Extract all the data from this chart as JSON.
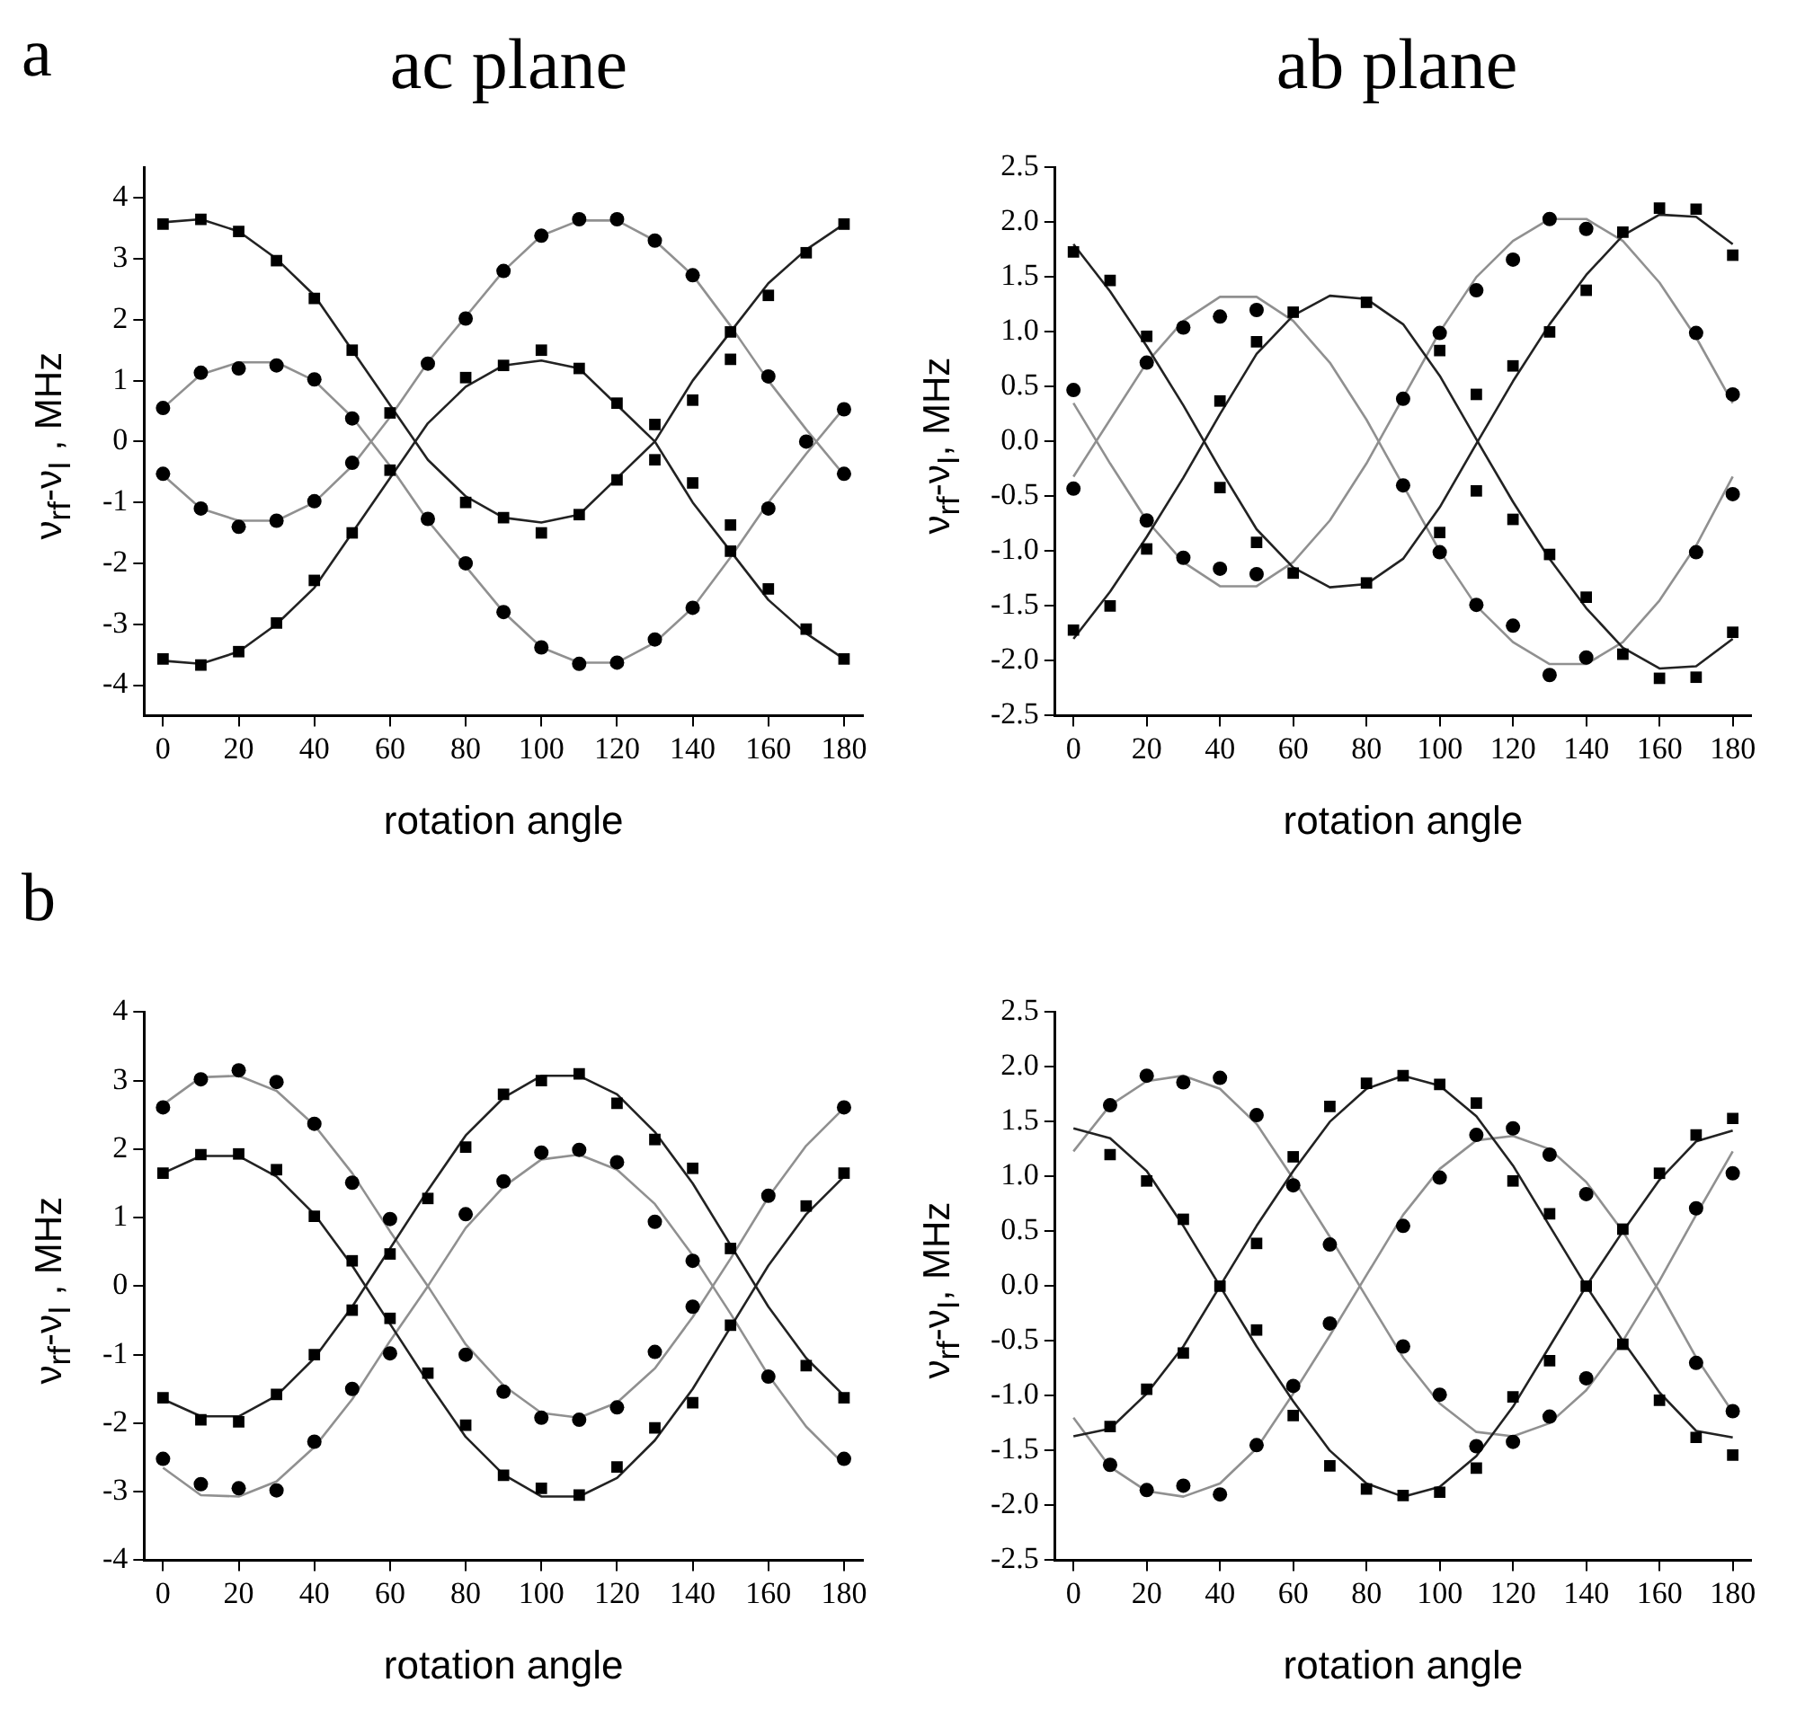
{
  "chart_data": [
    {
      "type": "scatter",
      "title": "ac plane",
      "annotations": [
        "a"
      ],
      "xlabel": "rotation angle",
      "ylabel": "ν$_{rf}$-ν$_{I}$ , MHz",
      "x": [
        0,
        10,
        20,
        30,
        40,
        50,
        60,
        70,
        80,
        90,
        100,
        110,
        120,
        130,
        140,
        150,
        160,
        170,
        180
      ],
      "xlim": [
        -5,
        185
      ],
      "xticks": [
        0,
        20,
        40,
        60,
        80,
        100,
        120,
        140,
        160,
        180
      ],
      "ylim": [
        -4.5,
        4.5
      ],
      "yticks": [
        -4,
        -3,
        -2,
        -1,
        0,
        1,
        2,
        3,
        4
      ],
      "series": [
        {
          "type": "scatter",
          "marker": "square",
          "color": "#000000",
          "values": [
            3.57,
            3.65,
            3.45,
            2.97,
            2.35,
            1.5,
            0.47,
            null,
            -1.0,
            -1.25,
            -1.5,
            -1.2,
            -0.63,
            0.28,
            0.68,
            1.8,
            2.4,
            3.1,
            3.57
          ]
        },
        {
          "type": "scatter",
          "marker": "square",
          "color": "#000000",
          "values": [
            -3.57,
            -3.67,
            -3.45,
            -2.98,
            -2.28,
            -1.5,
            -0.47,
            null,
            1.05,
            1.25,
            1.5,
            1.2,
            0.63,
            -0.3,
            -0.68,
            -1.8,
            -2.42,
            -3.08,
            -3.57
          ]
        },
        {
          "type": "scatter",
          "marker": "square",
          "color": "#000000",
          "x": [
            150,
            150
          ],
          "values": [
            1.35,
            -1.37
          ]
        },
        {
          "type": "scatter",
          "marker": "circle",
          "color": "#000000",
          "values": [
            0.55,
            1.13,
            1.2,
            1.25,
            1.02,
            0.38,
            null,
            -1.27,
            -2.0,
            -2.8,
            -3.38,
            -3.65,
            -3.63,
            -3.25,
            -2.73,
            null,
            -1.1,
            0.0,
            0.53
          ]
        },
        {
          "type": "scatter",
          "marker": "circle",
          "color": "#000000",
          "values": [
            -0.53,
            -1.1,
            -1.4,
            -1.3,
            -0.98,
            -0.35,
            null,
            1.28,
            2.02,
            2.8,
            3.38,
            3.65,
            3.65,
            3.3,
            2.73,
            null,
            1.07,
            null,
            -0.53
          ]
        },
        {
          "type": "line",
          "marker": "none",
          "color": "#222222",
          "values": [
            3.6,
            3.65,
            3.45,
            3.0,
            2.4,
            1.5,
            0.6,
            -0.3,
            -0.9,
            -1.25,
            -1.33,
            -1.2,
            -0.6,
            0.0,
            1.0,
            1.8,
            2.6,
            3.15,
            3.57
          ]
        },
        {
          "type": "line",
          "marker": "none",
          "color": "#222222",
          "values": [
            -3.6,
            -3.65,
            -3.45,
            -3.0,
            -2.4,
            -1.5,
            -0.6,
            0.3,
            0.9,
            1.25,
            1.33,
            1.2,
            0.6,
            0.0,
            -1.0,
            -1.8,
            -2.6,
            -3.15,
            -3.57
          ]
        },
        {
          "type": "line",
          "marker": "none",
          "color": "#909090",
          "values": [
            0.55,
            1.1,
            1.3,
            1.3,
            1.0,
            0.4,
            -0.4,
            -1.3,
            -2.05,
            -2.8,
            -3.38,
            -3.63,
            -3.63,
            -3.3,
            -2.73,
            -1.9,
            -1.0,
            -0.2,
            0.55
          ]
        },
        {
          "type": "line",
          "marker": "none",
          "color": "#909090",
          "values": [
            -0.55,
            -1.1,
            -1.3,
            -1.3,
            -1.0,
            -0.4,
            0.4,
            1.3,
            2.05,
            2.8,
            3.38,
            3.63,
            3.63,
            3.3,
            2.73,
            1.9,
            1.0,
            0.2,
            -0.55
          ]
        }
      ]
    },
    {
      "type": "scatter",
      "title": "ab plane",
      "xlabel": "rotation angle",
      "ylabel": "ν$_{rf}$-ν$_{I}$, MHz",
      "x": [
        0,
        10,
        20,
        30,
        40,
        50,
        60,
        70,
        80,
        90,
        100,
        110,
        120,
        130,
        140,
        150,
        160,
        170,
        180
      ],
      "xlim": [
        -5,
        185
      ],
      "xticks": [
        0,
        20,
        40,
        60,
        80,
        100,
        120,
        140,
        160,
        180
      ],
      "ylim": [
        -2.5,
        2.5
      ],
      "yticks": [
        -2.5,
        {
          "value": -2,
          "label": "-2.0"
        },
        -1.5,
        {
          "value": -1,
          "label": "-1.0"
        },
        -0.5,
        {
          "value": 0,
          "label": "0.0"
        },
        0.5,
        {
          "value": 1,
          "label": "1.0"
        },
        1.5,
        {
          "value": 2,
          "label": "2.0"
        },
        2.5
      ],
      "series": [
        {
          "type": "scatter",
          "marker": "square",
          "color": "#000000",
          "values": [
            1.73,
            1.47,
            0.96,
            null,
            -0.42,
            -0.92,
            -1.2,
            null,
            -1.29,
            null,
            -0.83,
            -0.45,
            0.69,
            1.0,
            1.38,
            1.91,
            2.13,
            2.12,
            1.7
          ]
        },
        {
          "type": "scatter",
          "marker": "square",
          "color": "#000000",
          "values": [
            -1.72,
            -1.5,
            -0.98,
            null,
            0.37,
            0.91,
            1.18,
            null,
            1.27,
            null,
            0.83,
            0.43,
            -0.71,
            -1.03,
            -1.42,
            -1.94,
            -2.16,
            -2.15,
            -1.74
          ]
        },
        {
          "type": "scatter",
          "marker": "circle",
          "color": "#000000",
          "values": [
            -0.43,
            null,
            0.72,
            1.04,
            1.14,
            1.2,
            null,
            null,
            null,
            -0.4,
            -1.01,
            -1.49,
            -1.68,
            -2.13,
            -1.97,
            null,
            null,
            -1.01,
            -0.48
          ]
        },
        {
          "type": "scatter",
          "marker": "circle",
          "color": "#000000",
          "values": [
            0.47,
            null,
            -0.72,
            -1.06,
            -1.16,
            -1.21,
            null,
            null,
            null,
            0.39,
            0.99,
            1.38,
            1.66,
            2.03,
            1.94,
            null,
            null,
            0.99,
            0.43
          ]
        },
        {
          "type": "line",
          "marker": "none",
          "color": "#222222",
          "values": [
            1.8,
            1.37,
            0.87,
            0.33,
            -0.25,
            -0.8,
            -1.15,
            -1.33,
            -1.3,
            -1.07,
            -0.6,
            -0.02,
            0.55,
            1.07,
            1.52,
            1.88,
            2.07,
            2.05,
            1.8
          ]
        },
        {
          "type": "line",
          "marker": "none",
          "color": "#222222",
          "values": [
            -1.8,
            -1.37,
            -0.87,
            -0.33,
            0.25,
            0.8,
            1.15,
            1.33,
            1.3,
            1.07,
            0.6,
            0.02,
            -0.55,
            -1.07,
            -1.52,
            -1.88,
            -2.07,
            -2.05,
            -1.8
          ]
        },
        {
          "type": "line",
          "marker": "none",
          "color": "#909090",
          "values": [
            -0.32,
            0.2,
            0.72,
            1.1,
            1.32,
            1.32,
            1.1,
            0.72,
            0.2,
            -0.4,
            -1.0,
            -1.5,
            -1.83,
            -2.03,
            -2.03,
            -1.83,
            -1.45,
            -0.95,
            -0.32
          ]
        },
        {
          "type": "line",
          "marker": "none",
          "color": "#909090",
          "values": [
            0.35,
            -0.2,
            -0.72,
            -1.1,
            -1.32,
            -1.32,
            -1.1,
            -0.72,
            -0.2,
            0.4,
            1.0,
            1.5,
            1.83,
            2.03,
            2.03,
            1.83,
            1.45,
            0.95,
            0.35
          ]
        }
      ]
    },
    {
      "type": "scatter",
      "annotations": [
        "b"
      ],
      "xlabel": "rotation angle",
      "ylabel": "ν$_{rf}$-ν$_{I}$ , MHz",
      "x": [
        0,
        10,
        20,
        30,
        40,
        50,
        60,
        70,
        80,
        90,
        100,
        110,
        120,
        130,
        140,
        150,
        160,
        170,
        180
      ],
      "xlim": [
        -5,
        185
      ],
      "xticks": [
        0,
        20,
        40,
        60,
        80,
        100,
        120,
        140,
        160,
        180
      ],
      "ylim": [
        -4,
        4
      ],
      "yticks": [
        -4,
        -3,
        -2,
        -1,
        0,
        1,
        2,
        3,
        4
      ],
      "series": [
        {
          "type": "scatter",
          "marker": "square",
          "color": "#000000",
          "values": [
            1.65,
            1.92,
            1.93,
            1.7,
            1.02,
            0.37,
            -0.47,
            -1.27,
            -2.03,
            -2.76,
            -2.95,
            -3.05,
            -2.64,
            -2.07,
            -1.7,
            -0.57,
            null,
            1.17,
            1.65
          ]
        },
        {
          "type": "scatter",
          "marker": "square",
          "color": "#000000",
          "values": [
            -1.63,
            -1.95,
            -1.98,
            -1.58,
            -1.0,
            -0.35,
            0.47,
            1.28,
            2.03,
            2.8,
            3.0,
            3.1,
            2.67,
            2.14,
            1.72,
            0.55,
            null,
            -1.16,
            -1.63
          ]
        },
        {
          "type": "scatter",
          "marker": "circle",
          "color": "#000000",
          "values": [
            2.61,
            3.02,
            3.15,
            2.98,
            2.37,
            1.51,
            0.98,
            null,
            -1.0,
            -1.54,
            -1.92,
            -1.95,
            -1.77,
            -0.96,
            -0.3,
            null,
            1.32,
            null,
            2.61
          ]
        },
        {
          "type": "scatter",
          "marker": "circle",
          "color": "#000000",
          "values": [
            -2.52,
            -2.89,
            -2.95,
            -2.98,
            -2.27,
            -1.5,
            -0.98,
            null,
            1.05,
            1.53,
            1.95,
            1.99,
            1.81,
            0.94,
            0.37,
            null,
            -1.32,
            null,
            -2.52
          ]
        },
        {
          "type": "line",
          "marker": "none",
          "color": "#222222",
          "values": [
            1.65,
            1.9,
            1.9,
            1.6,
            1.05,
            0.3,
            -0.55,
            -1.4,
            -2.2,
            -2.75,
            -3.07,
            -3.07,
            -2.8,
            -2.25,
            -1.5,
            -0.6,
            0.3,
            1.05,
            1.6
          ]
        },
        {
          "type": "line",
          "marker": "none",
          "color": "#222222",
          "values": [
            -1.65,
            -1.9,
            -1.9,
            -1.6,
            -1.05,
            -0.3,
            0.55,
            1.4,
            2.2,
            2.75,
            3.07,
            3.07,
            2.8,
            2.25,
            1.5,
            0.6,
            -0.3,
            -1.05,
            -1.6
          ]
        },
        {
          "type": "line",
          "marker": "none",
          "color": "#909090",
          "values": [
            2.65,
            3.05,
            3.07,
            2.85,
            2.35,
            1.65,
            0.8,
            0.0,
            -0.85,
            -1.45,
            -1.85,
            -1.92,
            -1.7,
            -1.2,
            -0.45,
            0.4,
            1.3,
            2.05,
            2.6
          ]
        },
        {
          "type": "line",
          "marker": "none",
          "color": "#909090",
          "values": [
            -2.65,
            -3.05,
            -3.07,
            -2.85,
            -2.35,
            -1.65,
            -0.8,
            0.0,
            0.85,
            1.45,
            1.85,
            1.92,
            1.7,
            1.2,
            0.45,
            -0.4,
            -1.3,
            -2.05,
            -2.6
          ]
        }
      ]
    },
    {
      "type": "scatter",
      "xlabel": "rotation angle",
      "ylabel": "ν$_{rf}$-ν$_{I}$, MHz",
      "x": [
        0,
        10,
        20,
        30,
        40,
        50,
        60,
        70,
        80,
        90,
        100,
        110,
        120,
        130,
        140,
        150,
        160,
        170,
        180
      ],
      "xlim": [
        -5,
        185
      ],
      "xticks": [
        0,
        20,
        40,
        60,
        80,
        100,
        120,
        140,
        160,
        180
      ],
      "ylim": [
        -2.5,
        2.5
      ],
      "yticks": [
        -2.5,
        {
          "value": -2,
          "label": "-2.0"
        },
        -1.5,
        {
          "value": -1,
          "label": "-1.0"
        },
        -0.5,
        {
          "value": 0,
          "label": "0.0"
        },
        0.5,
        {
          "value": 1,
          "label": "1.0"
        },
        1.5,
        {
          "value": 2,
          "label": "2.0"
        },
        2.5
      ],
      "series": [
        {
          "type": "scatter",
          "marker": "square",
          "color": "#000000",
          "values": [
            null,
            1.2,
            0.96,
            0.61,
            0.0,
            -0.4,
            -1.18,
            -1.64,
            -1.85,
            -1.91,
            -1.88,
            -1.66,
            -1.01,
            -0.68,
            0.0,
            0.52,
            1.03,
            1.38,
            1.53
          ]
        },
        {
          "type": "scatter",
          "marker": "square",
          "color": "#000000",
          "values": [
            null,
            -1.28,
            -0.94,
            -0.61,
            null,
            0.39,
            1.18,
            1.64,
            1.85,
            1.92,
            1.84,
            1.67,
            0.96,
            0.66,
            null,
            -0.53,
            -1.04,
            -1.38,
            -1.54
          ]
        },
        {
          "type": "scatter",
          "marker": "circle",
          "color": "#000000",
          "values": [
            null,
            1.65,
            1.92,
            1.86,
            1.9,
            1.56,
            0.92,
            0.38,
            null,
            -0.55,
            -0.99,
            -1.46,
            -1.42,
            -1.19,
            -0.84,
            null,
            null,
            0.71,
            1.03
          ]
        },
        {
          "type": "scatter",
          "marker": "circle",
          "color": "#000000",
          "values": [
            null,
            -1.63,
            -1.86,
            -1.82,
            -1.9,
            -1.45,
            -0.91,
            -0.34,
            null,
            0.55,
            0.99,
            1.38,
            1.44,
            1.2,
            0.84,
            null,
            null,
            -0.7,
            -1.14
          ]
        },
        {
          "type": "line",
          "marker": "none",
          "color": "#222222",
          "values": [
            1.44,
            1.35,
            1.05,
            0.55,
            0.0,
            -0.55,
            -1.05,
            -1.5,
            -1.8,
            -1.92,
            -1.83,
            -1.55,
            -1.1,
            -0.55,
            0.0,
            0.5,
            0.97,
            1.32,
            1.42
          ]
        },
        {
          "type": "line",
          "marker": "none",
          "color": "#222222",
          "values": [
            -1.37,
            -1.3,
            -0.98,
            -0.55,
            0.0,
            0.55,
            1.05,
            1.5,
            1.8,
            1.92,
            1.83,
            1.55,
            1.1,
            0.55,
            0.0,
            -0.5,
            -0.97,
            -1.32,
            -1.38
          ]
        },
        {
          "type": "line",
          "marker": "none",
          "color": "#909090",
          "values": [
            1.23,
            1.65,
            1.87,
            1.92,
            1.8,
            1.48,
            0.98,
            0.45,
            -0.1,
            -0.65,
            -1.07,
            -1.33,
            -1.37,
            -1.25,
            -0.95,
            -0.5,
            0.05,
            0.65,
            1.23
          ]
        },
        {
          "type": "line",
          "marker": "none",
          "color": "#909090",
          "values": [
            -1.2,
            -1.65,
            -1.87,
            -1.92,
            -1.8,
            -1.48,
            -0.98,
            -0.45,
            0.1,
            0.65,
            1.07,
            1.33,
            1.37,
            1.25,
            0.95,
            0.5,
            -0.05,
            -0.65,
            -1.15
          ]
        }
      ]
    }
  ]
}
